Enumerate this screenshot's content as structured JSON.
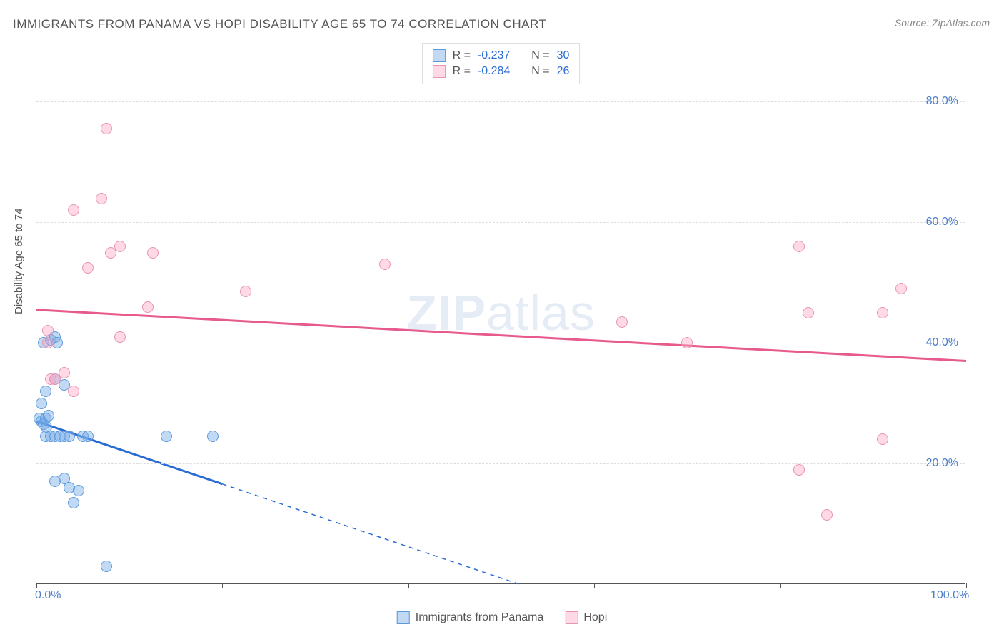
{
  "title": "IMMIGRANTS FROM PANAMA VS HOPI DISABILITY AGE 65 TO 74 CORRELATION CHART",
  "source_prefix": "Source: ",
  "source": "ZipAtlas.com",
  "ylabel": "Disability Age 65 to 74",
  "watermark": "ZIPatlas",
  "chart": {
    "type": "scatter",
    "xlim": [
      0,
      100
    ],
    "ylim": [
      0,
      90
    ],
    "y_ticks": [
      20,
      40,
      60,
      80
    ],
    "y_tick_labels": [
      "20.0%",
      "40.0%",
      "60.0%",
      "80.0%"
    ],
    "x_ticks": [
      0,
      20,
      40,
      60,
      80,
      100
    ],
    "x_shown_labels": {
      "0": "0.0%",
      "100": "100.0%"
    },
    "grid_color": "#dddddd",
    "axis_color": "#555555",
    "tick_label_color": "#4a7ec9",
    "background_color": "#ffffff",
    "point_radius": 8,
    "series": [
      {
        "name": "Immigrants from Panama",
        "fill": "rgba(120,170,230,0.45)",
        "stroke": "#5a9bdc",
        "trend_color": "#2b6cd4",
        "trend_width": 3,
        "trend_solid_xrange": [
          0,
          20
        ],
        "trend_dash_xrange": [
          20,
          52
        ],
        "trend_y_at_0": 27,
        "trend_y_at_100": -25,
        "R": "-0.237",
        "N": "30",
        "points": [
          [
            0.3,
            27.5
          ],
          [
            0.5,
            27
          ],
          [
            0.8,
            26.5
          ],
          [
            1.0,
            27.5
          ],
          [
            1.1,
            26
          ],
          [
            1.3,
            28
          ],
          [
            0.5,
            30
          ],
          [
            1.0,
            32
          ],
          [
            2.0,
            34
          ],
          [
            3.0,
            33
          ],
          [
            0.8,
            40
          ],
          [
            1.5,
            40.5
          ],
          [
            2.0,
            41
          ],
          [
            2.2,
            40
          ],
          [
            1.0,
            24.5
          ],
          [
            1.5,
            24.5
          ],
          [
            2.0,
            24.5
          ],
          [
            2.5,
            24.5
          ],
          [
            3.0,
            24.5
          ],
          [
            3.5,
            24.5
          ],
          [
            5.0,
            24.5
          ],
          [
            5.5,
            24.5
          ],
          [
            14.0,
            24.5
          ],
          [
            19.0,
            24.5
          ],
          [
            2.0,
            17
          ],
          [
            3.0,
            17.5
          ],
          [
            3.5,
            16
          ],
          [
            4.5,
            15.5
          ],
          [
            4.0,
            13.5
          ],
          [
            7.5,
            3
          ]
        ]
      },
      {
        "name": "Hopi",
        "fill": "rgba(255,160,190,0.4)",
        "stroke": "#e895b5",
        "trend_color": "#e75a8d",
        "trend_width": 3,
        "trend_solid_xrange": [
          0,
          100
        ],
        "trend_y_at_0": 45.5,
        "trend_y_at_100": 37,
        "R": "-0.284",
        "N": "26",
        "points": [
          [
            1.2,
            40
          ],
          [
            1.2,
            42
          ],
          [
            1.5,
            34
          ],
          [
            2.0,
            34
          ],
          [
            3.0,
            35
          ],
          [
            4.0,
            32
          ],
          [
            4.0,
            62
          ],
          [
            7.0,
            64
          ],
          [
            7.5,
            75.5
          ],
          [
            8.0,
            55
          ],
          [
            9.0,
            56
          ],
          [
            5.5,
            52.5
          ],
          [
            12.5,
            55
          ],
          [
            12.0,
            46
          ],
          [
            22.5,
            48.5
          ],
          [
            37.5,
            53
          ],
          [
            63.0,
            43.5
          ],
          [
            70.0,
            40
          ],
          [
            82.0,
            56
          ],
          [
            83.0,
            45
          ],
          [
            93.0,
            49
          ],
          [
            91.0,
            45
          ],
          [
            91.0,
            24
          ],
          [
            82.0,
            19
          ],
          [
            85.0,
            11.5
          ],
          [
            9.0,
            41
          ]
        ]
      }
    ]
  },
  "stats_labels": {
    "R": "R =",
    "N": "N ="
  },
  "legend": {
    "series1": "Immigrants from Panama",
    "series2": "Hopi"
  }
}
